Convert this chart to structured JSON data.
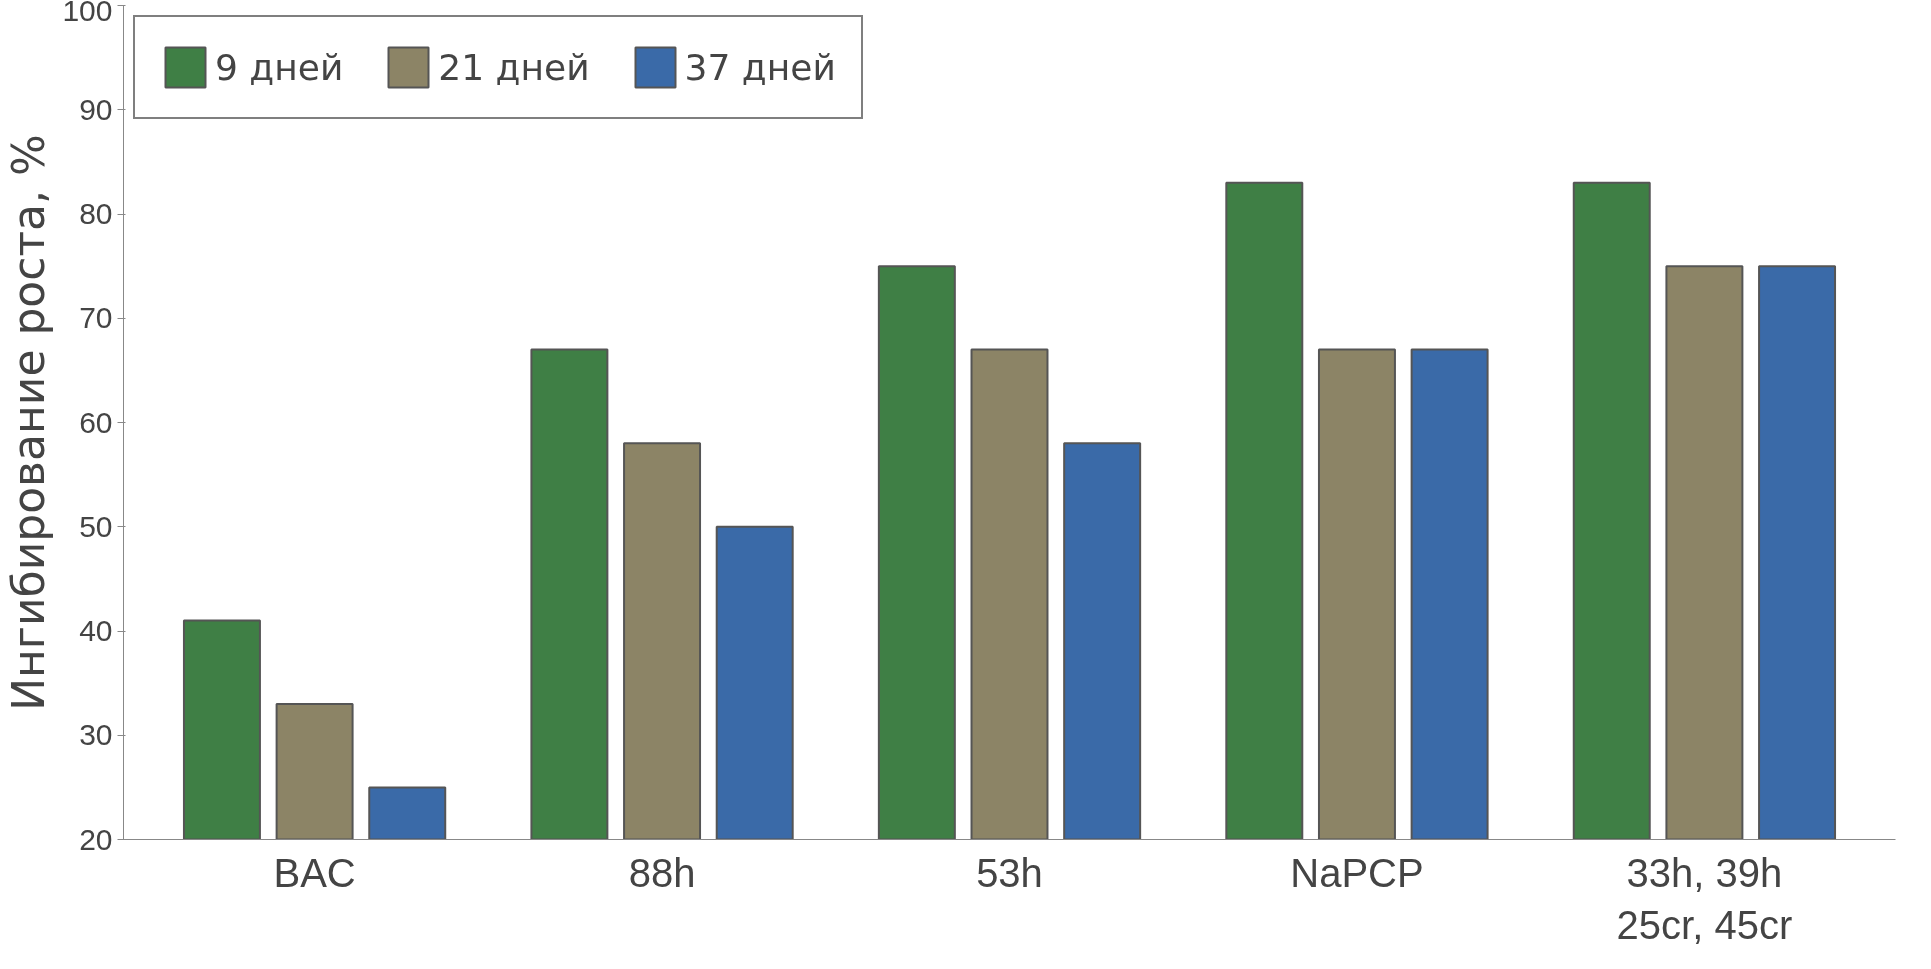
{
  "chart_data": {
    "type": "bar",
    "ylabel": "Ингибирование роста, %",
    "categories": [
      "BAC",
      "88h",
      "53h",
      "NaPCP",
      "33h, 39h\n25cr, 45cr"
    ],
    "series": [
      {
        "name": "9 дней",
        "color": "#3f7f45",
        "values": [
          41,
          67,
          75,
          83,
          83
        ]
      },
      {
        "name": "21 дней",
        "color": "#8c8466",
        "values": [
          33,
          58,
          67,
          67,
          75
        ]
      },
      {
        "name": "37 дней",
        "color": "#3a6aa8",
        "values": [
          25,
          50,
          58,
          67,
          75
        ]
      }
    ],
    "ylim": [
      20,
      100
    ],
    "yticks": [
      20,
      30,
      40,
      50,
      60,
      70,
      80,
      90,
      100
    ],
    "grid": false,
    "legend": "top left"
  }
}
